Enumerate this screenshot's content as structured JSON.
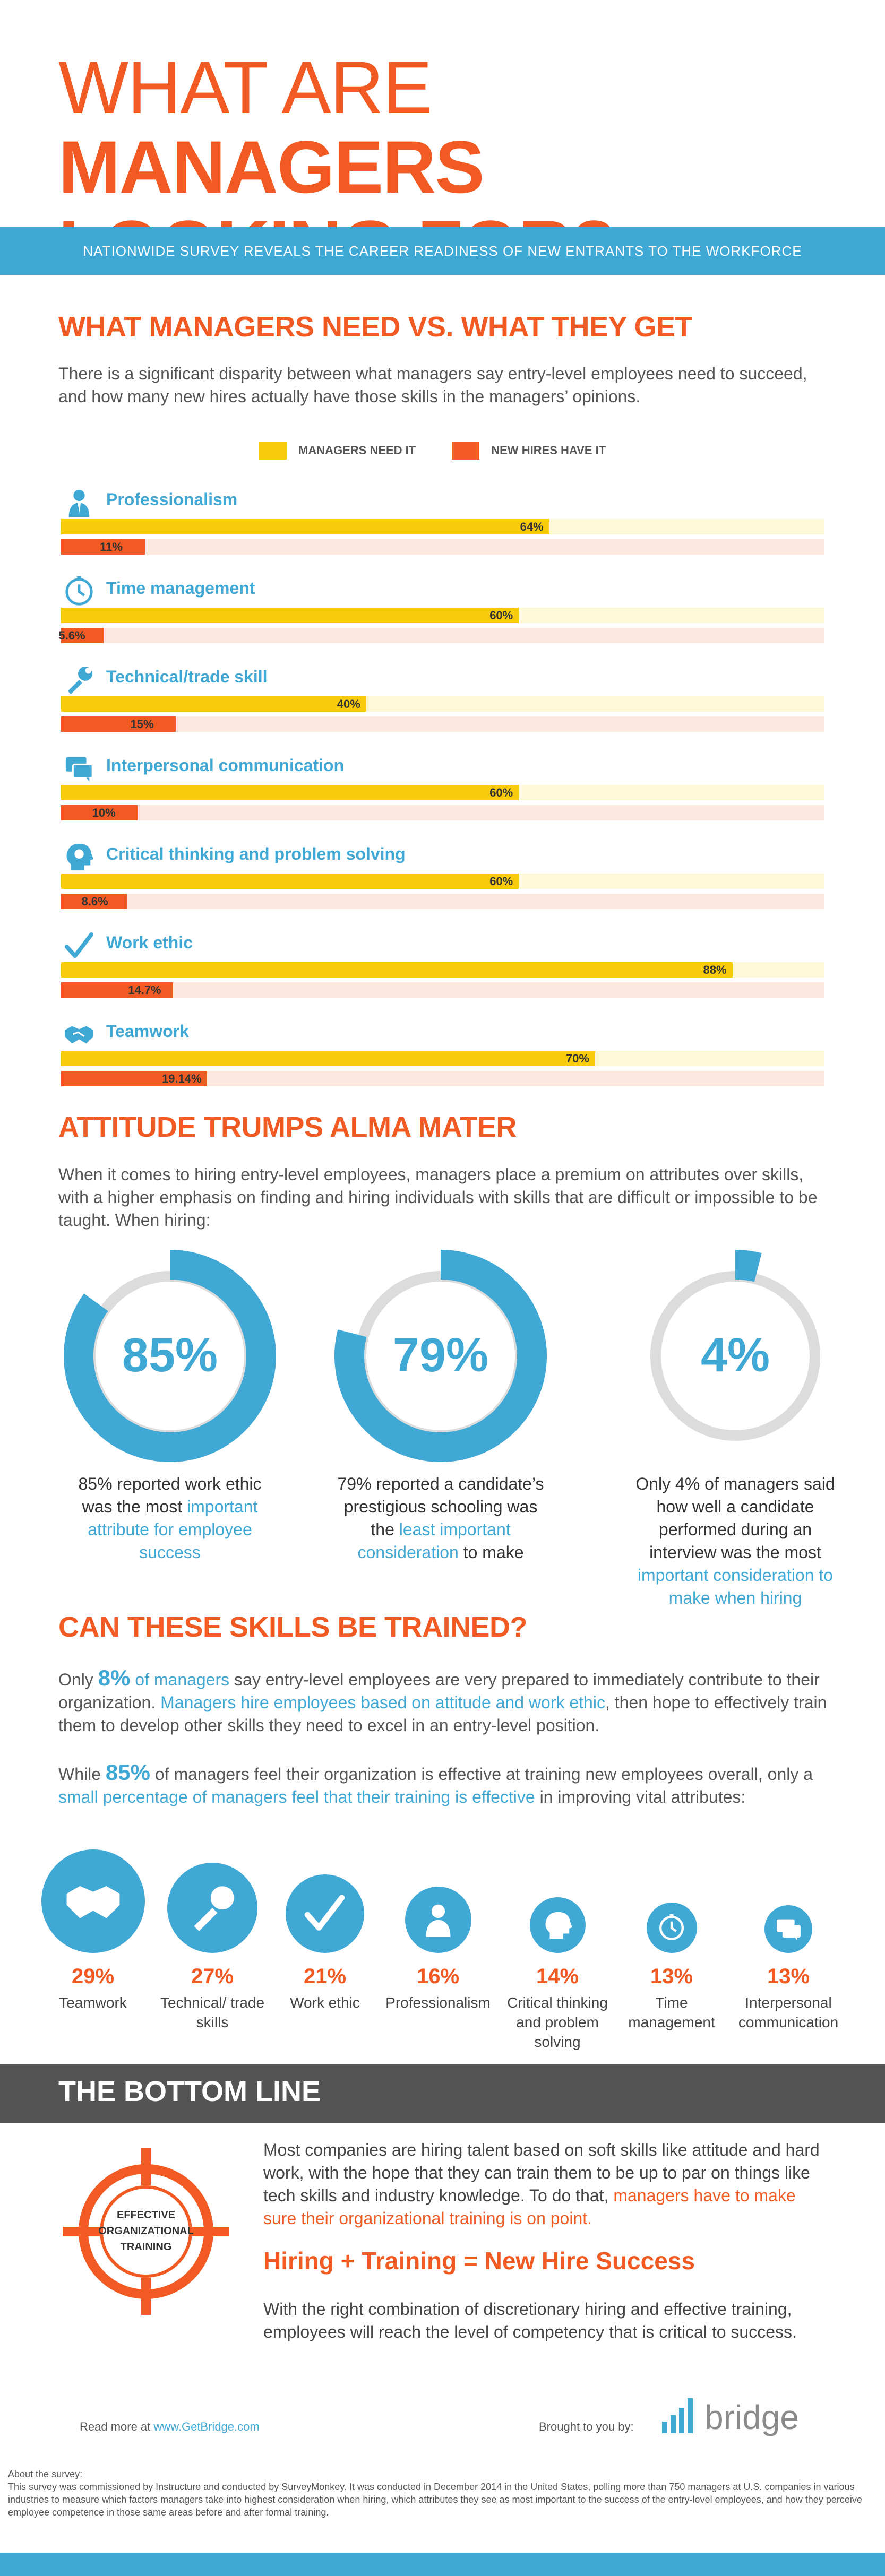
{
  "title": {
    "line1_light": "WHAT ARE ",
    "line1_bold": "MANAGERS",
    "line2": "LOOKING FOR?"
  },
  "banner": "NATIONWIDE SURVEY REVEALS THE CAREER READINESS OF NEW ENTRANTS TO THE WORKFORCE",
  "section1": {
    "heading": "WHAT MANAGERS NEED VS. WHAT THEY GET",
    "intro": "There is a significant disparity between what managers say entry-level employees need to succeed, and how many new hires actually have those skills in the managers’ opinions.",
    "legend": {
      "need": "MANAGERS NEED IT",
      "have": "NEW HIRES HAVE IT"
    }
  },
  "colors": {
    "orange": "#f15a22",
    "blue": "#40a8d4",
    "yellow": "#f8cc0c",
    "need_track": "#fdf8d8",
    "have_track": "#fde8e0",
    "grey_ring": "#dcdcdc",
    "dark_band": "#545454"
  },
  "chart_data": {
    "type": "bar",
    "categories": [
      "Professionalism",
      "Time management",
      "Technical/trade skill",
      "Interpersonal communication",
      "Critical thinking and problem solving",
      "Work ethic",
      "Teamwork"
    ],
    "icons": [
      "professional-icon",
      "clock-icon",
      "wrench-icon",
      "chat-icon",
      "head-icon",
      "checkmark-icon",
      "handshake-icon"
    ],
    "series": [
      {
        "name": "MANAGERS NEED IT",
        "values": [
          64,
          60,
          40,
          60,
          60,
          88,
          70
        ],
        "labels": [
          "64%",
          "60%",
          "40%",
          "60%",
          "60%",
          "88%",
          "70%"
        ]
      },
      {
        "name": "NEW HIRES HAVE IT",
        "values": [
          11,
          5.6,
          15,
          10,
          8.6,
          14.7,
          19.14
        ],
        "labels": [
          "11%",
          "5.6%",
          "15%",
          "10%",
          "8.6%",
          "14.7%",
          "19.14%"
        ]
      }
    ],
    "xlim": [
      0,
      100
    ],
    "legend": "top"
  },
  "section2": {
    "heading": "ATTITUDE TRUMPS ALMA MATER",
    "intro": "When it comes to hiring entry-level employees, managers place a premium on attributes over skills, with a higher emphasis on finding and hiring individuals with skills that are difficult or impossible to be taught. When hiring:",
    "donuts": [
      {
        "value": 85,
        "label": "85%",
        "cap_a": "85% reported work ethic was the most ",
        "cap_b": "important attribute for employee success",
        "cap_c": ""
      },
      {
        "value": 79,
        "label": "79%",
        "cap_a": "79% reported a candidate’s prestigious schooling was the ",
        "cap_b": "least important consideration",
        "cap_c": " to make"
      },
      {
        "value": 4,
        "label": "4%",
        "cap_a": "Only 4% of managers said how well a candidate performed during an interview was the most ",
        "cap_b": "important consideration to make when hiring",
        "cap_c": ""
      }
    ]
  },
  "section3": {
    "heading": "CAN THESE SKILLS BE TRAINED?",
    "p1": {
      "a": "Only ",
      "pct": "8%",
      "b": " of managers",
      "c": " say entry-level employees are very prepared to immediately contribute to their organization. ",
      "d": "Managers hire employees based on attitude and work ethic",
      "e": ", then hope to effectively train them to develop other skills they need to excel in an entry-level position."
    },
    "p2": {
      "a": "While ",
      "pct": "85%",
      "b": " of managers feel their organization is effective at training new employees overall, only a ",
      "c": "small percentage of managers feel that their training is effective",
      "d": " in improving vital attributes:"
    },
    "trained": [
      {
        "pct": "29%",
        "value": 29,
        "label": "Teamwork",
        "icon": "handshake-icon"
      },
      {
        "pct": "27%",
        "value": 27,
        "label": "Technical/ trade skills",
        "icon": "wrench-icon"
      },
      {
        "pct": "21%",
        "value": 21,
        "label": "Work ethic",
        "icon": "checkmark-icon"
      },
      {
        "pct": "16%",
        "value": 16,
        "label": "Professionalism",
        "icon": "professional-icon"
      },
      {
        "pct": "14%",
        "value": 14,
        "label": "Critical thinking and problem solving",
        "icon": "head-icon"
      },
      {
        "pct": "13%",
        "value": 13,
        "label": "Time management",
        "icon": "clock-icon"
      },
      {
        "pct": "13%",
        "value": 13,
        "label": "Interpersonal communication",
        "icon": "chat-icon"
      }
    ]
  },
  "section4": {
    "heading": "THE BOTTOM LINE",
    "target_text": [
      "EFFECTIVE",
      "ORGANIZATIONAL",
      "TRAINING"
    ],
    "p1_a": "Most companies are hiring talent based on soft skills like attitude and hard work, with the hope that they can train them to be up to par on things like tech skills and industry knowledge. To do that, ",
    "p1_b": "managers have to make sure their organizational training is on point.",
    "equation": "Hiring + Training = New Hire Success",
    "p2": "With the right combination of discretionary hiring and effective training, employees will reach the level of competency that is critical to success."
  },
  "footer": {
    "read_more": "Read more at ",
    "link": "www.GetBridge.com",
    "brought": "Brought to you by:",
    "brand": "bridge",
    "about_title": "About the survey:",
    "about_text": "This survey was commissioned by Instructure and conducted by SurveyMonkey. It was conducted in December 2014 in the United States, polling more than 750 managers at U.S. companies in various industries to measure which factors managers take into highest consideration when hiring, which attributes they see as most important to the success of the entry-level employees, and how they perceive employee competence in those same areas before and after formal training."
  }
}
